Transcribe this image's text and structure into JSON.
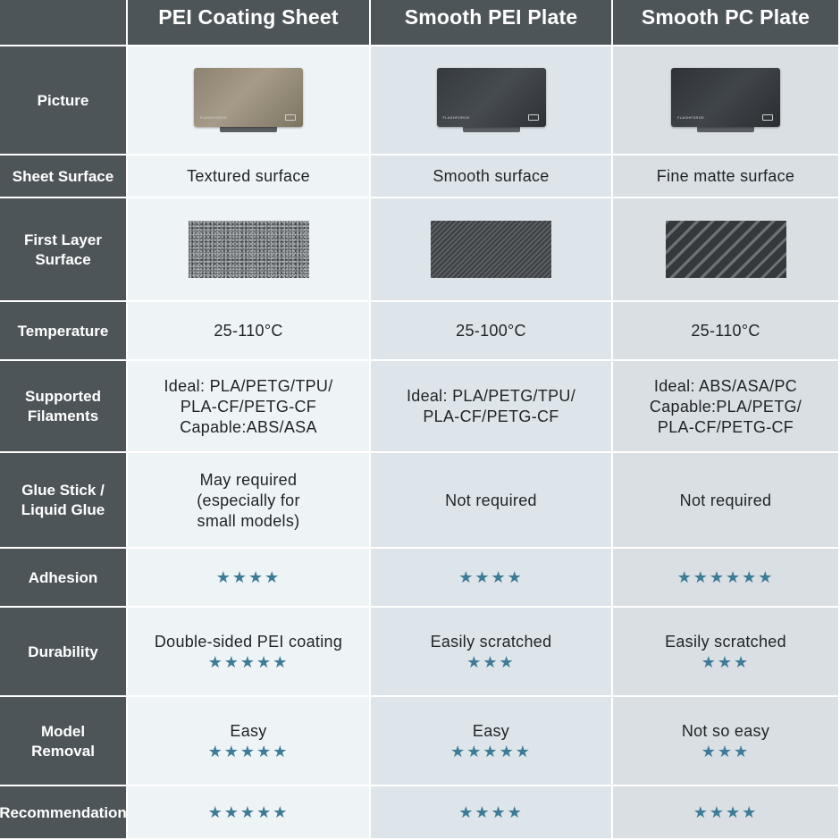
{
  "columns": [
    {
      "header": "PEI Coating Sheet",
      "plate_style": "gold",
      "sheet_surface": "Textured surface",
      "first_layer": "textured",
      "temperature": "25-110°C",
      "filaments": [
        "Ideal: PLA/PETG/TPU/",
        "PLA-CF/PETG-CF",
        "Capable:ABS/ASA"
      ],
      "glue": [
        "May required",
        "(especially for",
        "small models)"
      ],
      "adhesion": "★★★★",
      "durability_text": "Double-sided PEI coating",
      "durability_stars": "★★★★★",
      "removal_text": "Easy",
      "removal_stars": "★★★★★",
      "recommendation": "★★★★★"
    },
    {
      "header": "Smooth PEI Plate",
      "plate_style": "dark",
      "sheet_surface": "Smooth surface",
      "first_layer": "smooth",
      "temperature": "25-100°C",
      "filaments": [
        "Ideal: PLA/PETG/TPU/",
        "PLA-CF/PETG-CF"
      ],
      "glue": [
        "Not required"
      ],
      "adhesion": "★★★★",
      "durability_text": "Easily scratched",
      "durability_stars": "★★★",
      "removal_text": "Easy",
      "removal_stars": "★★★★★",
      "recommendation": "★★★★"
    },
    {
      "header": "Smooth PC Plate",
      "plate_style": "dark",
      "sheet_surface": "Fine matte surface",
      "first_layer": "striped",
      "temperature": "25-110°C",
      "filaments": [
        "Ideal: ABS/ASA/PC",
        "Capable:PLA/PETG/",
        "PLA-CF/PETG-CF"
      ],
      "glue": [
        "Not required"
      ],
      "adhesion": "★★★★★★",
      "durability_text": "Easily scratched",
      "durability_stars": "★★★",
      "removal_text": "Not so easy",
      "removal_stars": "★★★",
      "recommendation": "★★★★"
    }
  ],
  "row_labels": {
    "picture": "Picture",
    "sheet_surface": "Sheet Surface",
    "first_layer": [
      "First Layer",
      "Surface"
    ],
    "temperature": "Temperature",
    "filaments": [
      "Supported",
      "Filaments"
    ],
    "glue": [
      "Glue Stick /",
      "Liquid Glue"
    ],
    "adhesion": "Adhesion",
    "durability": "Durability",
    "removal": [
      "Model",
      "Removal"
    ],
    "recommendation": "Recommendation"
  },
  "plate_brand": "FLASHFORGE",
  "colors": {
    "label_bg": "#4e5559",
    "star": "#3e7b96",
    "col1_bg": "#eef3f6",
    "col2_bg": "#dde5ea",
    "col3_bg": "#d9dfe3"
  }
}
